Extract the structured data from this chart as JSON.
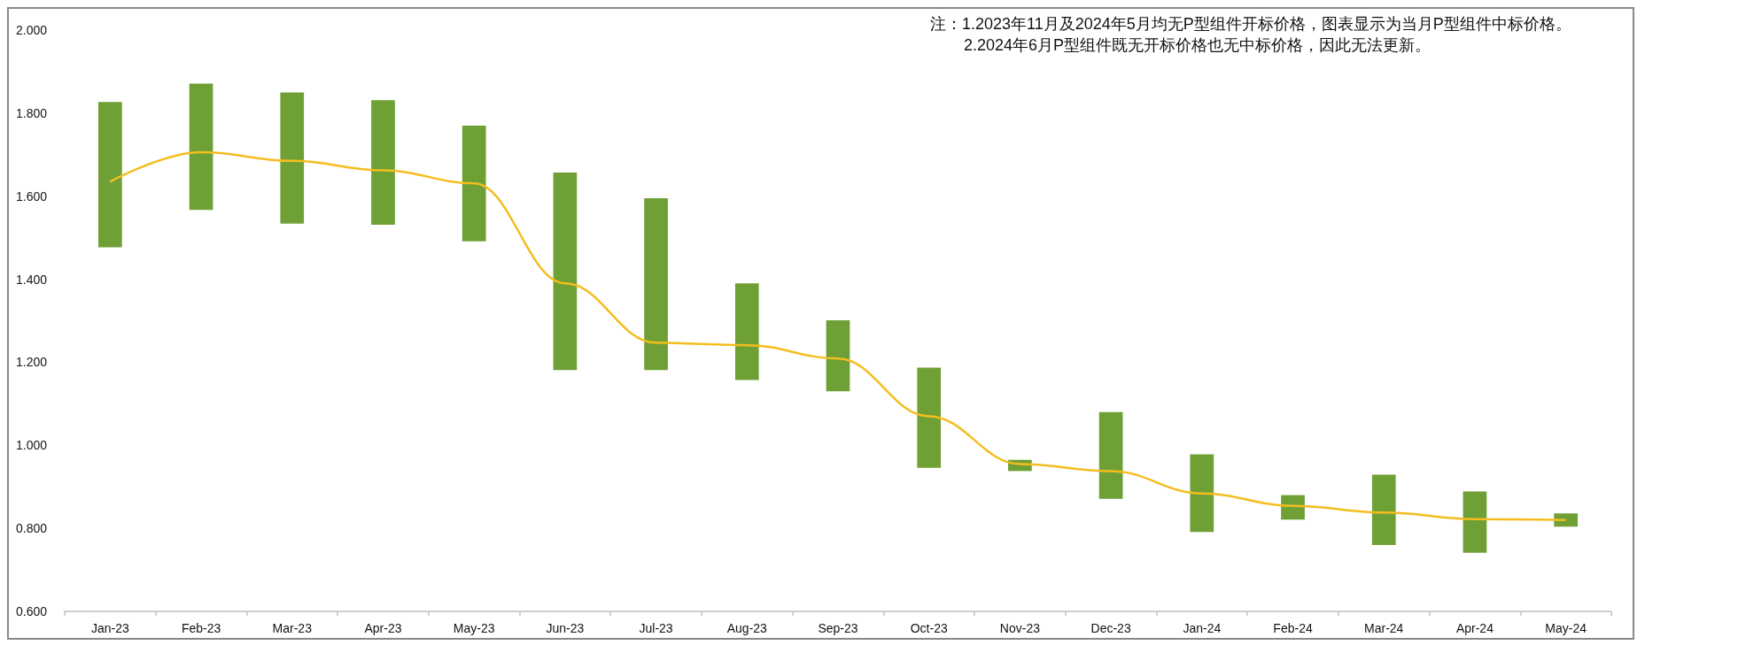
{
  "chart_data": {
    "type": "bar",
    "categories": [
      "Jan-23",
      "Feb-23",
      "Mar-23",
      "Apr-23",
      "May-23",
      "Jun-23",
      "Jul-23",
      "Aug-23",
      "Sep-23",
      "Oct-23",
      "Nov-23",
      "Dec-23",
      "Jan-24",
      "Feb-24",
      "Mar-24",
      "Apr-24",
      "May-24"
    ],
    "series": [
      {
        "color": "#6fa035",
        "base": [
          1.477,
          1.567,
          1.534,
          1.531,
          1.491,
          1.181,
          1.181,
          1.157,
          1.13,
          0.946,
          0.938,
          0.871,
          0.791,
          0.821,
          0.76,
          0.741,
          0.804
        ],
        "values": [
          0.35,
          0.304,
          0.316,
          0.3,
          0.279,
          0.476,
          0.414,
          0.233,
          0.171,
          0.241,
          0.027,
          0.209,
          0.187,
          0.059,
          0.169,
          0.148,
          0.032
        ]
      },
      {
        "type": "line",
        "color": "#f5bd1f",
        "marker": "none",
        "values": [
          1.635,
          1.706,
          1.685,
          1.662,
          1.631,
          1.39,
          1.247,
          1.241,
          1.209,
          1.07,
          0.955,
          0.938,
          0.884,
          0.854,
          0.838,
          0.822,
          0.82
        ]
      }
    ],
    "ylim": [
      0.6,
      2.0
    ],
    "yticks": [
      {
        "value": 0.6,
        "label": "0.600"
      },
      {
        "value": 0.8,
        "label": "0.800"
      },
      {
        "value": 1.0,
        "label": "1.000"
      },
      {
        "value": 1.2,
        "label": "1.200"
      },
      {
        "value": 1.4,
        "label": "1.400"
      },
      {
        "value": 1.6,
        "label": "1.600"
      },
      {
        "value": 1.8,
        "label": "1.800"
      },
      {
        "value": 2.0,
        "label": "2.000"
      }
    ],
    "annotations": [
      "注：1.2023年11月及2024年5月均无P型组件开标价格，图表显示为当月P型组件中标价格。",
      "2.2024年6月P型组件既无开标价格也无中标价格，因此无法更新。"
    ]
  }
}
